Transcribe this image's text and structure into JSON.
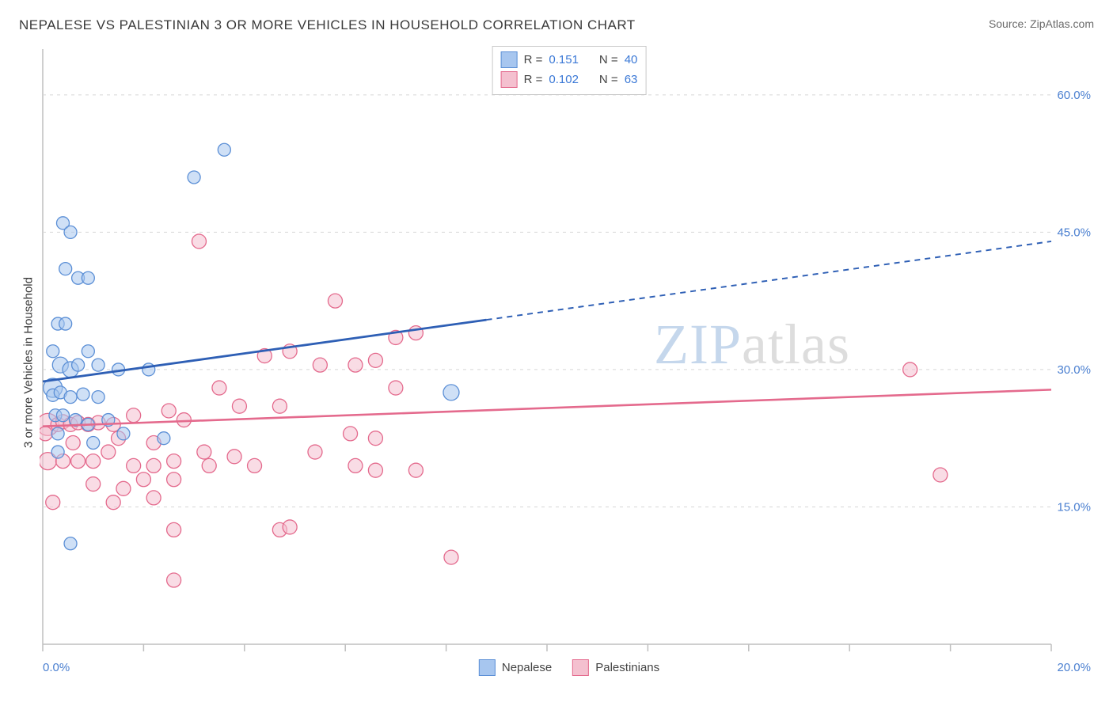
{
  "title": "NEPALESE VS PALESTINIAN 3 OR MORE VEHICLES IN HOUSEHOLD CORRELATION CHART",
  "source": "Source: ZipAtlas.com",
  "ylabel": "3 or more Vehicles in Household",
  "watermark": {
    "part1": "ZIP",
    "part2": "atlas"
  },
  "legend_top": {
    "rows": [
      {
        "r_label": "R  =",
        "r": "0.151",
        "n_label": "N  =",
        "n": "40",
        "sw_fill": "#a7c6ef",
        "sw_stroke": "#5b8fd6"
      },
      {
        "r_label": "R  =",
        "r": "0.102",
        "n_label": "N  =",
        "n": "63",
        "sw_fill": "#f4c0cf",
        "sw_stroke": "#e46a8d"
      }
    ]
  },
  "legend_bottom": {
    "items": [
      {
        "label": "Nepalese",
        "sw_fill": "#a7c6ef",
        "sw_stroke": "#5b8fd6"
      },
      {
        "label": "Palestinians",
        "sw_fill": "#f4c0cf",
        "sw_stroke": "#e46a8d"
      }
    ]
  },
  "chart": {
    "type": "scatter",
    "xlim": [
      0,
      20
    ],
    "ylim": [
      0,
      65
    ],
    "xtick_step": 2,
    "yticks": [
      15,
      30,
      45,
      60
    ],
    "xtick_labels": {
      "0": "0.0%",
      "20": "20.0%"
    },
    "ytick_labels": {
      "15": "15.0%",
      "30": "30.0%",
      "45": "45.0%",
      "60": "60.0%"
    },
    "background": "#ffffff",
    "grid_color": "#d7d7d7",
    "axis_color": "#bfbfbf",
    "tick_label_color": "#4a7fd0",
    "axis_text_color": "#3a3a3a",
    "series": {
      "nepalese": {
        "point_fill": "#a7c6ef",
        "point_stroke": "#5b8fd6",
        "point_fill_opacity": 0.55,
        "regression": {
          "color": "#2e5fb5",
          "width": 2.8,
          "solid_until_x": 8.8,
          "x1": 0,
          "y1": 28.7,
          "x2": 20,
          "y2": 44.0
        },
        "points": [
          {
            "x": 0.4,
            "y": 46.0,
            "r": 8
          },
          {
            "x": 0.55,
            "y": 45.0,
            "r": 8
          },
          {
            "x": 0.45,
            "y": 41.0,
            "r": 8
          },
          {
            "x": 0.7,
            "y": 40.0,
            "r": 8
          },
          {
            "x": 0.9,
            "y": 40.0,
            "r": 8
          },
          {
            "x": 3.0,
            "y": 51.0,
            "r": 8
          },
          {
            "x": 3.6,
            "y": 54.0,
            "r": 8
          },
          {
            "x": 0.3,
            "y": 35.0,
            "r": 8
          },
          {
            "x": 0.45,
            "y": 35.0,
            "r": 8
          },
          {
            "x": 0.2,
            "y": 32.0,
            "r": 8
          },
          {
            "x": 0.9,
            "y": 32.0,
            "r": 8
          },
          {
            "x": 0.35,
            "y": 30.5,
            "r": 10
          },
          {
            "x": 0.55,
            "y": 30.0,
            "r": 10
          },
          {
            "x": 0.7,
            "y": 30.5,
            "r": 8
          },
          {
            "x": 1.1,
            "y": 30.5,
            "r": 8
          },
          {
            "x": 1.5,
            "y": 30.0,
            "r": 8
          },
          {
            "x": 0.2,
            "y": 28.0,
            "r": 12
          },
          {
            "x": 0.2,
            "y": 27.2,
            "r": 8
          },
          {
            "x": 0.35,
            "y": 27.5,
            "r": 8
          },
          {
            "x": 0.55,
            "y": 27.0,
            "r": 8
          },
          {
            "x": 0.8,
            "y": 27.3,
            "r": 8
          },
          {
            "x": 1.1,
            "y": 27.0,
            "r": 8
          },
          {
            "x": 2.1,
            "y": 30.0,
            "r": 8
          },
          {
            "x": 0.25,
            "y": 25.0,
            "r": 8
          },
          {
            "x": 0.4,
            "y": 25.0,
            "r": 8
          },
          {
            "x": 0.65,
            "y": 24.5,
            "r": 8
          },
          {
            "x": 0.9,
            "y": 24.0,
            "r": 8
          },
          {
            "x": 1.3,
            "y": 24.5,
            "r": 8
          },
          {
            "x": 1.0,
            "y": 22.0,
            "r": 8
          },
          {
            "x": 1.6,
            "y": 23.0,
            "r": 8
          },
          {
            "x": 2.4,
            "y": 22.5,
            "r": 8
          },
          {
            "x": 0.3,
            "y": 23.0,
            "r": 8
          },
          {
            "x": 0.3,
            "y": 21.0,
            "r": 8
          },
          {
            "x": 8.1,
            "y": 27.5,
            "r": 10
          },
          {
            "x": 0.55,
            "y": 11.0,
            "r": 8
          }
        ]
      },
      "palestinians": {
        "point_fill": "#f4c0cf",
        "point_stroke": "#e46a8d",
        "point_fill_opacity": 0.55,
        "regression": {
          "color": "#e46a8d",
          "width": 2.6,
          "solid_until_x": 20,
          "x1": 0,
          "y1": 23.8,
          "x2": 20,
          "y2": 27.8
        },
        "points": [
          {
            "x": 3.1,
            "y": 44.0,
            "r": 9
          },
          {
            "x": 5.8,
            "y": 37.5,
            "r": 9
          },
          {
            "x": 7.0,
            "y": 33.5,
            "r": 9
          },
          {
            "x": 7.4,
            "y": 34.0,
            "r": 9
          },
          {
            "x": 4.9,
            "y": 32.0,
            "r": 9
          },
          {
            "x": 5.5,
            "y": 30.5,
            "r": 9
          },
          {
            "x": 6.2,
            "y": 30.5,
            "r": 9
          },
          {
            "x": 6.6,
            "y": 31.0,
            "r": 9
          },
          {
            "x": 4.4,
            "y": 31.5,
            "r": 9
          },
          {
            "x": 3.5,
            "y": 28.0,
            "r": 9
          },
          {
            "x": 3.9,
            "y": 26.0,
            "r": 9
          },
          {
            "x": 4.7,
            "y": 26.0,
            "r": 9
          },
          {
            "x": 2.5,
            "y": 25.5,
            "r": 9
          },
          {
            "x": 2.8,
            "y": 24.5,
            "r": 9
          },
          {
            "x": 1.8,
            "y": 25.0,
            "r": 9
          },
          {
            "x": 7.0,
            "y": 28.0,
            "r": 9
          },
          {
            "x": 6.1,
            "y": 23.0,
            "r": 9
          },
          {
            "x": 6.6,
            "y": 22.5,
            "r": 9
          },
          {
            "x": 6.6,
            "y": 19.0,
            "r": 9
          },
          {
            "x": 6.2,
            "y": 19.5,
            "r": 9
          },
          {
            "x": 7.4,
            "y": 19.0,
            "r": 9
          },
          {
            "x": 5.4,
            "y": 21.0,
            "r": 9
          },
          {
            "x": 4.7,
            "y": 12.5,
            "r": 9
          },
          {
            "x": 4.9,
            "y": 12.8,
            "r": 9
          },
          {
            "x": 2.6,
            "y": 12.5,
            "r": 9
          },
          {
            "x": 2.2,
            "y": 16.0,
            "r": 9
          },
          {
            "x": 2.6,
            "y": 7.0,
            "r": 9
          },
          {
            "x": 8.1,
            "y": 9.5,
            "r": 9
          },
          {
            "x": 0.1,
            "y": 24.0,
            "r": 14
          },
          {
            "x": 0.05,
            "y": 23.0,
            "r": 9
          },
          {
            "x": 0.3,
            "y": 24.0,
            "r": 9
          },
          {
            "x": 0.4,
            "y": 24.3,
            "r": 9
          },
          {
            "x": 0.55,
            "y": 24.0,
            "r": 9
          },
          {
            "x": 0.7,
            "y": 24.2,
            "r": 9
          },
          {
            "x": 0.9,
            "y": 24.0,
            "r": 9
          },
          {
            "x": 1.1,
            "y": 24.2,
            "r": 9
          },
          {
            "x": 1.4,
            "y": 24.0,
            "r": 9
          },
          {
            "x": 0.1,
            "y": 20.0,
            "r": 11
          },
          {
            "x": 0.4,
            "y": 20.0,
            "r": 9
          },
          {
            "x": 0.7,
            "y": 20.0,
            "r": 9
          },
          {
            "x": 1.0,
            "y": 20.0,
            "r": 9
          },
          {
            "x": 1.3,
            "y": 21.0,
            "r": 9
          },
          {
            "x": 1.8,
            "y": 19.5,
            "r": 9
          },
          {
            "x": 2.2,
            "y": 19.5,
            "r": 9
          },
          {
            "x": 2.6,
            "y": 20.0,
            "r": 9
          },
          {
            "x": 3.3,
            "y": 19.5,
            "r": 9
          },
          {
            "x": 2.2,
            "y": 22.0,
            "r": 9
          },
          {
            "x": 1.5,
            "y": 22.5,
            "r": 9
          },
          {
            "x": 0.6,
            "y": 22.0,
            "r": 9
          },
          {
            "x": 1.0,
            "y": 17.5,
            "r": 9
          },
          {
            "x": 1.6,
            "y": 17.0,
            "r": 9
          },
          {
            "x": 2.0,
            "y": 18.0,
            "r": 9
          },
          {
            "x": 2.6,
            "y": 18.0,
            "r": 9
          },
          {
            "x": 3.2,
            "y": 21.0,
            "r": 9
          },
          {
            "x": 3.8,
            "y": 20.5,
            "r": 9
          },
          {
            "x": 4.2,
            "y": 19.5,
            "r": 9
          },
          {
            "x": 0.2,
            "y": 15.5,
            "r": 9
          },
          {
            "x": 1.4,
            "y": 15.5,
            "r": 9
          },
          {
            "x": 17.2,
            "y": 30.0,
            "r": 9
          },
          {
            "x": 17.8,
            "y": 18.5,
            "r": 9
          }
        ]
      }
    }
  }
}
